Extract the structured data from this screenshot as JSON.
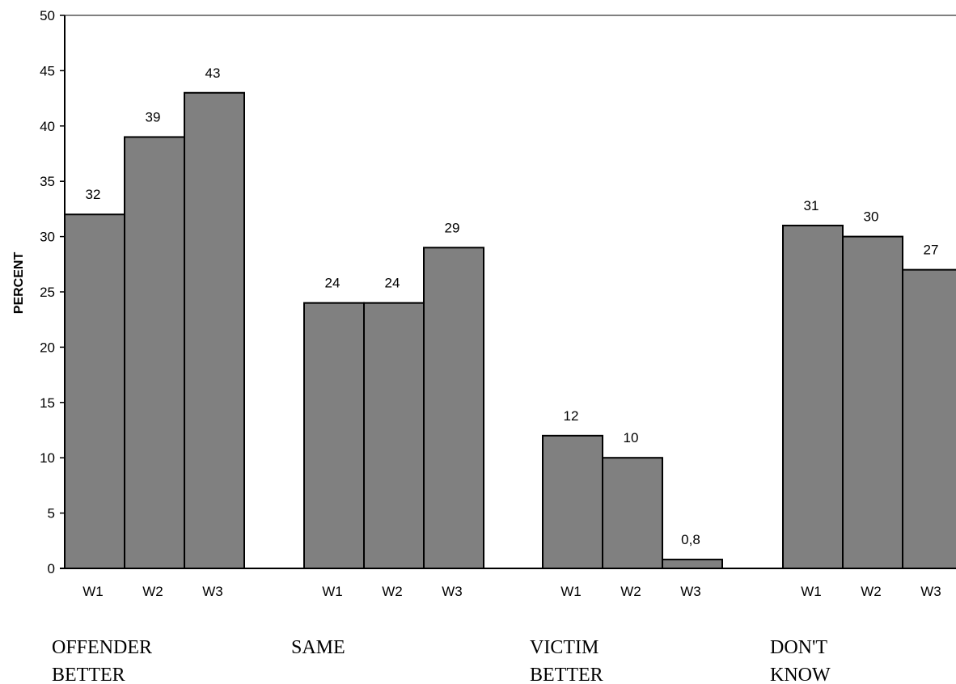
{
  "chart_data": {
    "type": "bar",
    "ylabel": "PERCENT",
    "ylim": [
      0,
      50
    ],
    "ytick_step": 5,
    "ytick_labels": [
      "0",
      "5",
      "10",
      "15",
      "20",
      "25",
      "30",
      "35",
      "40",
      "45",
      "50"
    ],
    "grid": false,
    "groups": [
      {
        "name_lines": [
          "OFFENDER",
          "BETTER"
        ],
        "bars": [
          {
            "category": "W1",
            "value": 32,
            "label": "32"
          },
          {
            "category": "W2",
            "value": 39,
            "label": "39"
          },
          {
            "category": "W3",
            "value": 43,
            "label": "43"
          }
        ]
      },
      {
        "name_lines": [
          "SAME"
        ],
        "bars": [
          {
            "category": "W1",
            "value": 24,
            "label": "24"
          },
          {
            "category": "W2",
            "value": 24,
            "label": "24"
          },
          {
            "category": "W3",
            "value": 29,
            "label": "29"
          }
        ]
      },
      {
        "name_lines": [
          "VICTIM",
          "BETTER"
        ],
        "bars": [
          {
            "category": "W1",
            "value": 12,
            "label": "12"
          },
          {
            "category": "W2",
            "value": 10,
            "label": "10"
          },
          {
            "category": "W3",
            "value": 0.8,
            "label": "0,8"
          }
        ]
      },
      {
        "name_lines": [
          "DON'T",
          "KNOW"
        ],
        "bars": [
          {
            "category": "W1",
            "value": 31,
            "label": "31"
          },
          {
            "category": "W2",
            "value": 30,
            "label": "30"
          },
          {
            "category": "W3",
            "value": 27,
            "label": "27"
          }
        ]
      }
    ],
    "colors": {
      "bar_fill": "#808080",
      "bar_stroke": "#000000",
      "top_border": "#808080"
    }
  }
}
